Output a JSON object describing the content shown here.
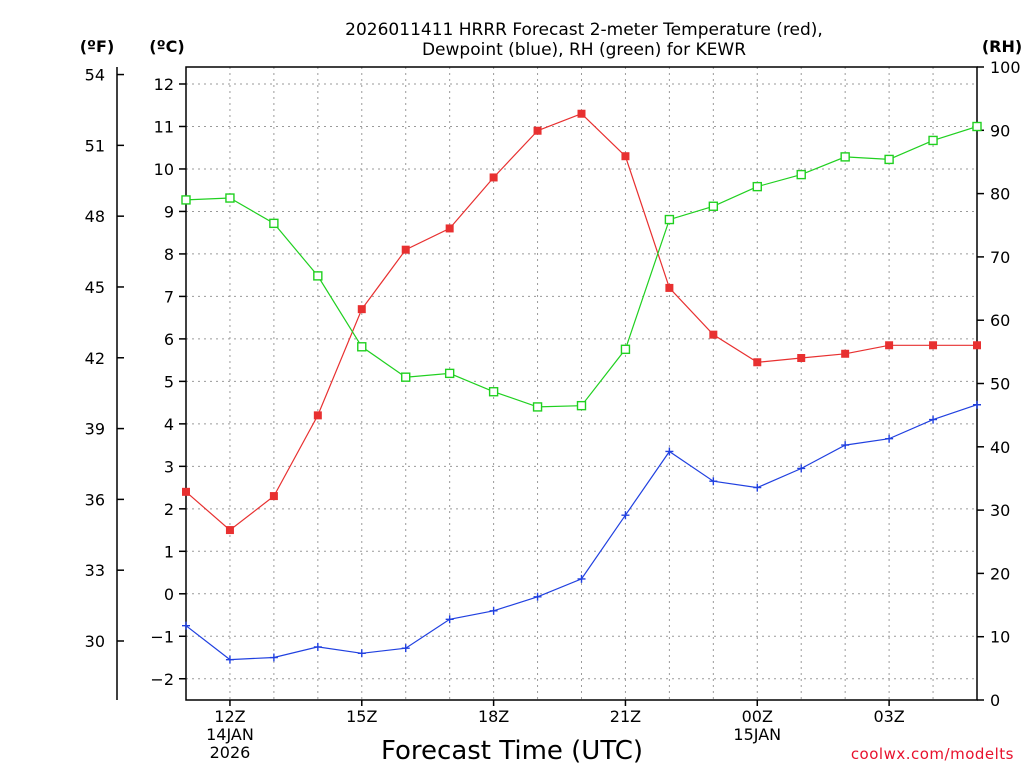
{
  "chart_data": {
    "type": "line",
    "title_line1": "2026011411 HRRR Forecast 2-meter Temperature (red),",
    "title_line2": "Dewpoint (blue), RH (green) for KEWR",
    "xlabel": "Forecast Time (UTC)",
    "credit": "coolwx.com/modelts",
    "unit_f": "(ºF)",
    "unit_c": "(ºC)",
    "unit_rh": "(RH)",
    "hours": [
      11,
      12,
      13,
      14,
      15,
      16,
      17,
      18,
      19,
      20,
      21,
      22,
      23,
      24,
      25,
      26,
      27,
      28,
      29
    ],
    "x_ticks": [
      {
        "hour": 12,
        "lines": [
          "12Z",
          "14JAN",
          "2026"
        ]
      },
      {
        "hour": 15,
        "lines": [
          "15Z"
        ]
      },
      {
        "hour": 18,
        "lines": [
          "18Z"
        ]
      },
      {
        "hour": 21,
        "lines": [
          "21Z"
        ]
      },
      {
        "hour": 24,
        "lines": [
          "00Z",
          "15JAN"
        ]
      },
      {
        "hour": 27,
        "lines": [
          "03Z"
        ]
      }
    ],
    "celsius_axis": {
      "min": -2.5,
      "max": 12.4,
      "ticks": [
        -2,
        -1,
        0,
        1,
        2,
        3,
        4,
        5,
        6,
        7,
        8,
        9,
        10,
        11,
        12
      ]
    },
    "fahrenheit_axis": {
      "ticks": [
        30,
        33,
        36,
        39,
        42,
        45,
        48,
        51,
        54
      ]
    },
    "rh_axis": {
      "min": 0,
      "max": 100,
      "ticks": [
        0,
        10,
        20,
        30,
        40,
        50,
        60,
        70,
        80,
        90,
        100
      ]
    },
    "series": [
      {
        "name": "Temperature",
        "unit": "C",
        "color": "#e83030",
        "marker": "filled-square",
        "values": [
          2.4,
          1.5,
          2.3,
          4.2,
          6.7,
          8.1,
          8.6,
          9.8,
          10.9,
          11.3,
          10.3,
          7.2,
          6.1,
          5.45,
          5.55,
          5.65,
          5.85,
          5.85,
          5.85
        ]
      },
      {
        "name": "Dewpoint",
        "unit": "C",
        "color": "#2040e0",
        "marker": "plus",
        "values": [
          -0.75,
          -1.55,
          -1.5,
          -1.25,
          -1.4,
          -1.28,
          -0.6,
          -0.4,
          -0.07,
          0.35,
          1.85,
          3.35,
          2.65,
          2.5,
          2.95,
          3.5,
          3.65,
          4.1,
          4.45
        ]
      },
      {
        "name": "RH",
        "unit": "%",
        "color": "#20d020",
        "marker": "open-square",
        "values": [
          79.0,
          79.3,
          75.3,
          67.0,
          55.8,
          51.0,
          51.6,
          48.7,
          46.3,
          46.5,
          55.4,
          75.9,
          78.0,
          81.1,
          83.0,
          85.8,
          85.4,
          88.4,
          90.6
        ]
      }
    ]
  }
}
